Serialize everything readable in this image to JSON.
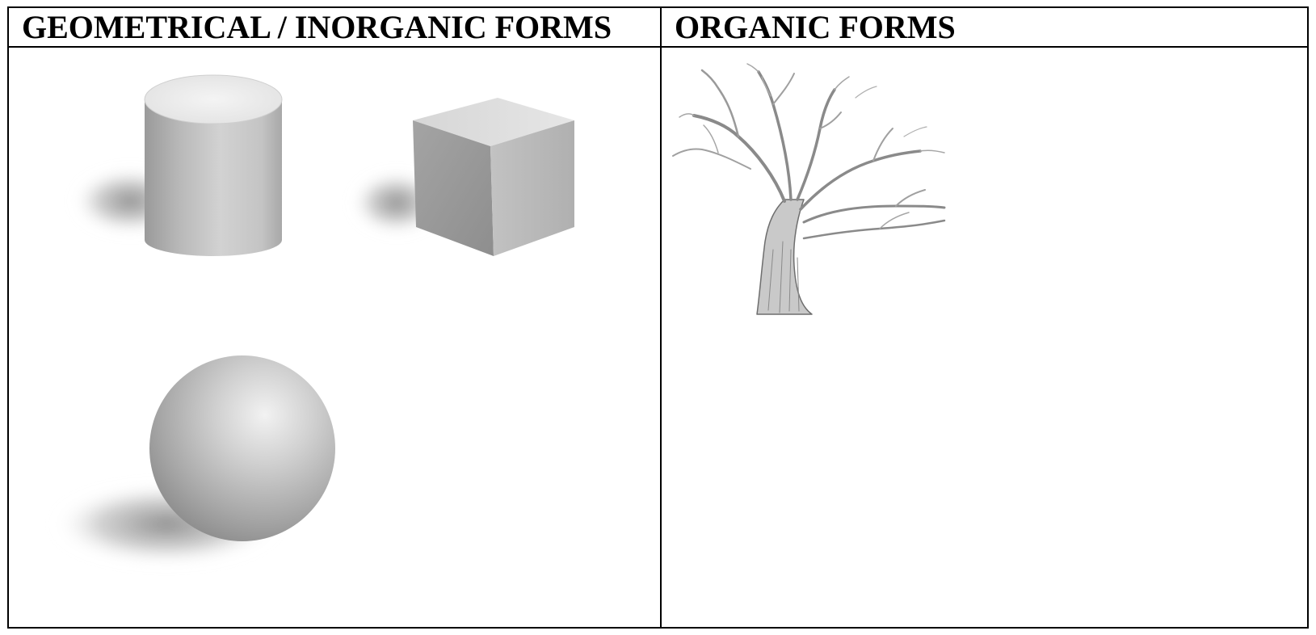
{
  "table": {
    "headers": {
      "geometric": "GEOMETRICAL / INORGANIC FORMS",
      "organic": "ORGANIC FORMS"
    }
  },
  "illustrations": {
    "geometric": [
      "cylinder",
      "cube",
      "sphere"
    ],
    "organic": [
      "tree"
    ]
  }
}
